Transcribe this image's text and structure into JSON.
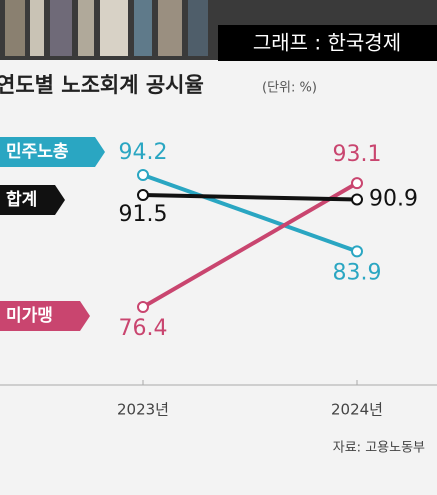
{
  "overlay": "그래프 : 한국경제",
  "chart_data": {
    "type": "line",
    "title": "연도별 노조회계 공시율",
    "unit": "(단위: %)",
    "categories": [
      "2023년",
      "2024년"
    ],
    "series": [
      {
        "name": "민주노총",
        "color": "#2aa6c2",
        "values": [
          94.2,
          83.9
        ]
      },
      {
        "name": "미가맹",
        "color": "#c9456f",
        "values": [
          76.4,
          93.1
        ]
      },
      {
        "name": "합계",
        "color": "#111111",
        "values": [
          91.5,
          90.9
        ]
      }
    ],
    "source": "자료: 고용노동부"
  }
}
